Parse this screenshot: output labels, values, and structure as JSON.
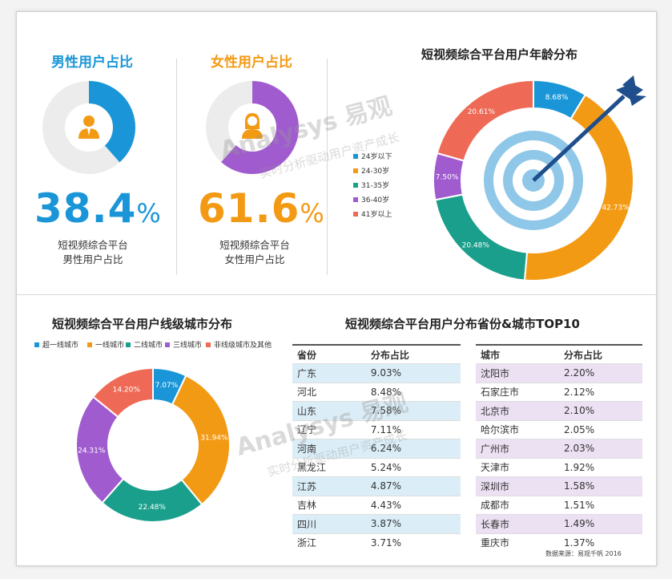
{
  "male": {
    "title": "男性用户占比",
    "value": "38.4",
    "unit": "%",
    "caption_line1": "短视频综合平台",
    "caption_line2": "男性用户占比",
    "fraction": 0.384,
    "color": "#1a96d8"
  },
  "female": {
    "title": "女性用户占比",
    "value": "61.6",
    "unit": "%",
    "caption_line1": "短视频综合平台",
    "caption_line2": "女性用户占比",
    "fraction": 0.616,
    "color": "#a05ccf"
  },
  "age": {
    "title": "短视频综合平台用户年龄分布"
  },
  "city_tier": {
    "title": "短视频综合平台用户线级城市分布"
  },
  "top10": {
    "title": "短视频综合平台用户分布省份&城市TOP10"
  },
  "watermark": {
    "brand": "易观",
    "logo": "Analysys",
    "slogan": "实时分析驱动用户资产成长"
  },
  "source": "数据来源：易观千帆 2016",
  "chart_data": [
    {
      "type": "pie",
      "title": "短视频综合平台用户年龄分布",
      "categories": [
        "24岁以下",
        "24-30岁",
        "31-35岁",
        "36-40岁",
        "41岁以上"
      ],
      "values": [
        8.68,
        42.73,
        20.48,
        7.5,
        20.61
      ],
      "labels": [
        "8.68%",
        "42.73%",
        "20.48%",
        "7.50%",
        "20.61%"
      ],
      "colors": [
        "#1a96d8",
        "#f39a14",
        "#1a9f8c",
        "#a05ccf",
        "#ef6a56"
      ],
      "legend_position": "left"
    },
    {
      "type": "pie",
      "title": "短视频综合平台用户线级城市分布",
      "categories": [
        "超一线城市",
        "一线城市",
        "二线城市",
        "三线城市",
        "非线级城市及其他"
      ],
      "values": [
        7.07,
        31.94,
        22.48,
        24.31,
        14.2
      ],
      "labels": [
        "7.07%",
        "31.94%",
        "22.48%",
        "24.31%",
        "14.20%"
      ],
      "colors": [
        "#1a96d8",
        "#f39a14",
        "#1a9f8c",
        "#a05ccf",
        "#ef6a56"
      ],
      "legend_position": "top"
    },
    {
      "type": "table",
      "columns": [
        "省份",
        "分布占比"
      ],
      "rows": [
        [
          "广东",
          "9.03%"
        ],
        [
          "河北",
          "8.48%"
        ],
        [
          "山东",
          "7.58%"
        ],
        [
          "辽宁",
          "7.11%"
        ],
        [
          "河南",
          "6.24%"
        ],
        [
          "黑龙江",
          "5.24%"
        ],
        [
          "江苏",
          "4.87%"
        ],
        [
          "吉林",
          "4.43%"
        ],
        [
          "四川",
          "3.87%"
        ],
        [
          "浙江",
          "3.71%"
        ]
      ]
    },
    {
      "type": "table",
      "columns": [
        "城市",
        "分布占比"
      ],
      "rows": [
        [
          "沈阳市",
          "2.20%"
        ],
        [
          "石家庄市",
          "2.12%"
        ],
        [
          "北京市",
          "2.10%"
        ],
        [
          "哈尔滨市",
          "2.05%"
        ],
        [
          "广州市",
          "2.03%"
        ],
        [
          "天津市",
          "1.92%"
        ],
        [
          "深圳市",
          "1.58%"
        ],
        [
          "成都市",
          "1.51%"
        ],
        [
          "长春市",
          "1.49%"
        ],
        [
          "重庆市",
          "1.37%"
        ]
      ]
    }
  ]
}
